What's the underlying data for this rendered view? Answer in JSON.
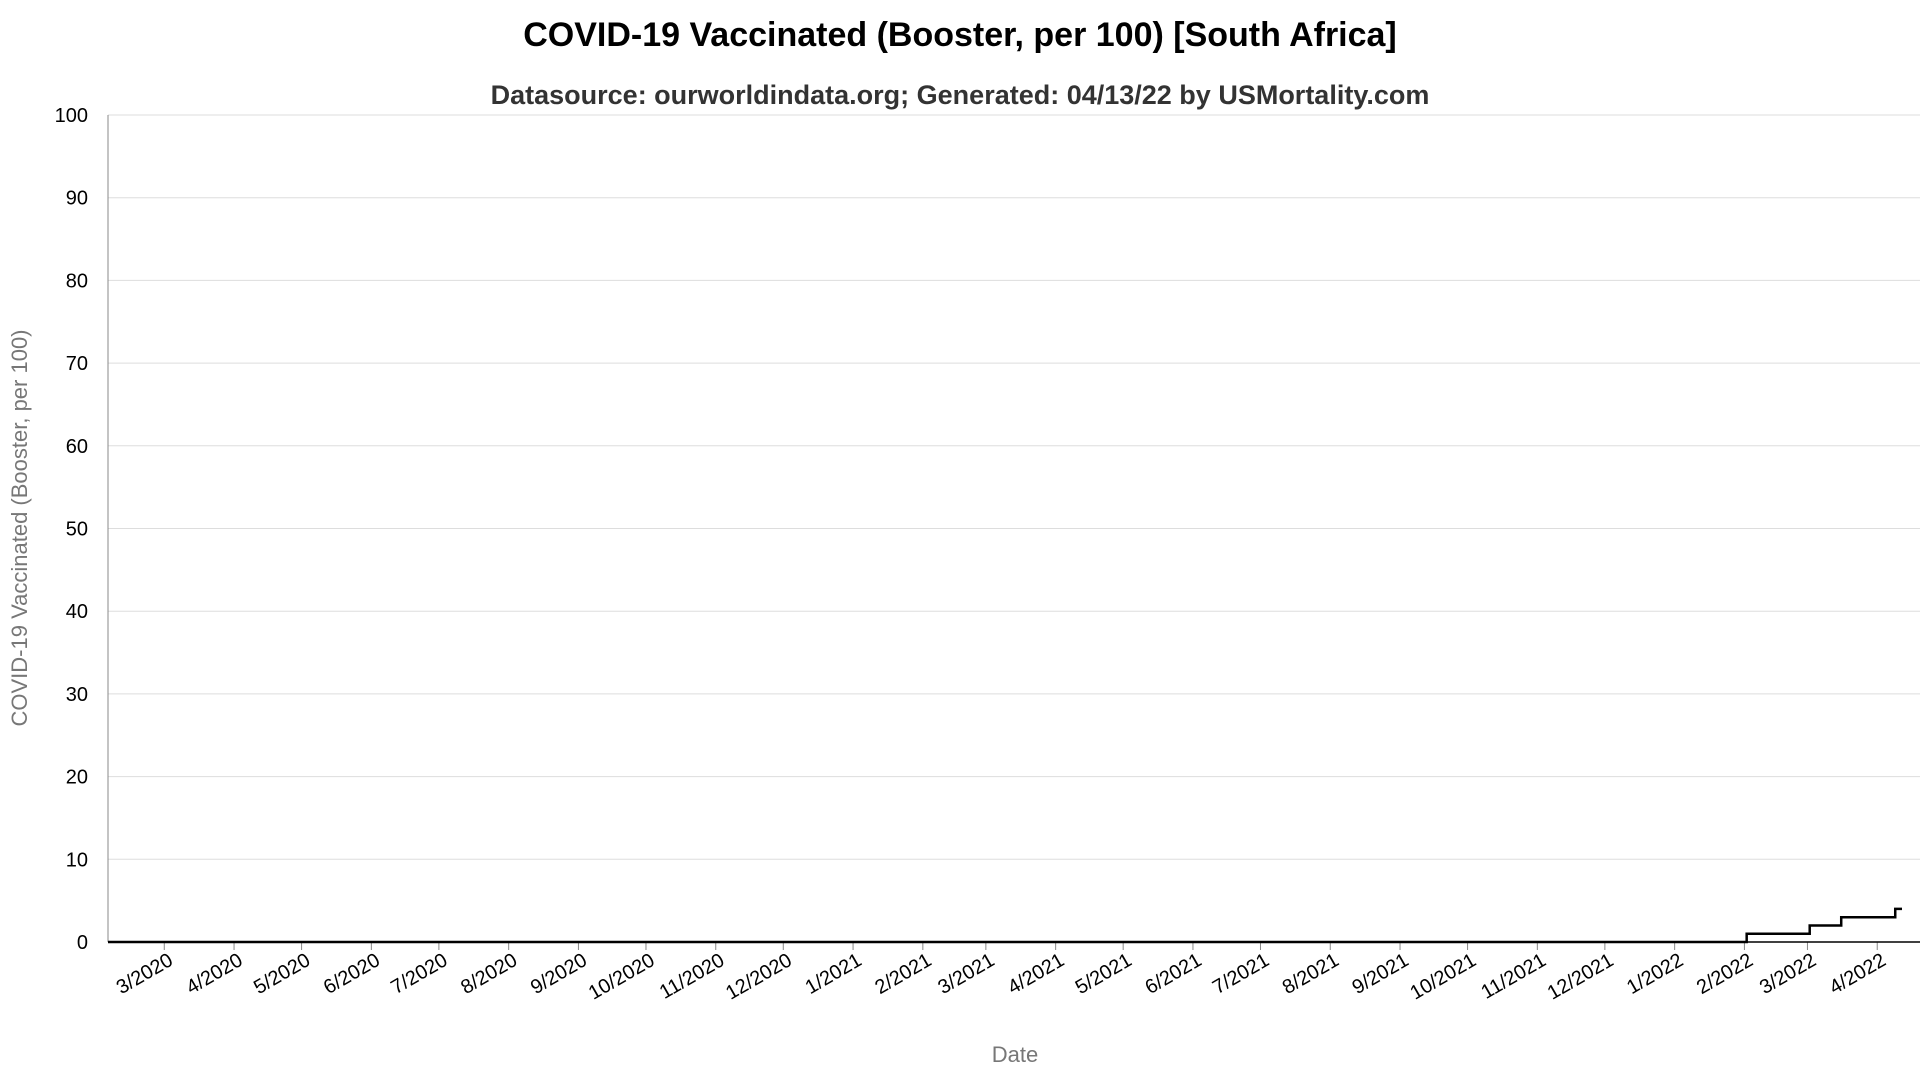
{
  "chart_data": {
    "type": "line",
    "title": "COVID-19 Vaccinated (Booster, per 100) [South Africa]",
    "subtitle": "Datasource: ourworldindata.org; Generated: 04/13/22 by USMortality.com",
    "xlabel": "Date",
    "ylabel": "COVID-19 Vaccinated (Booster, per 100)",
    "ylim": [
      0,
      100
    ],
    "yticks": [
      0,
      10,
      20,
      30,
      40,
      50,
      60,
      70,
      80,
      90,
      100
    ],
    "xlim": [
      "2020-02-05",
      "2022-04-20"
    ],
    "x_ticks": [
      {
        "date": "2020-03-01",
        "label": "3/2020"
      },
      {
        "date": "2020-04-01",
        "label": "4/2020"
      },
      {
        "date": "2020-05-01",
        "label": "5/2020"
      },
      {
        "date": "2020-06-01",
        "label": "6/2020"
      },
      {
        "date": "2020-07-01",
        "label": "7/2020"
      },
      {
        "date": "2020-08-01",
        "label": "8/2020"
      },
      {
        "date": "2020-09-01",
        "label": "9/2020"
      },
      {
        "date": "2020-10-01",
        "label": "10/2020"
      },
      {
        "date": "2020-11-01",
        "label": "11/2020"
      },
      {
        "date": "2020-12-01",
        "label": "12/2020"
      },
      {
        "date": "2021-01-01",
        "label": "1/2021"
      },
      {
        "date": "2021-02-01",
        "label": "2/2021"
      },
      {
        "date": "2021-03-01",
        "label": "3/2021"
      },
      {
        "date": "2021-04-01",
        "label": "4/2021"
      },
      {
        "date": "2021-05-01",
        "label": "5/2021"
      },
      {
        "date": "2021-06-01",
        "label": "6/2021"
      },
      {
        "date": "2021-07-01",
        "label": "7/2021"
      },
      {
        "date": "2021-08-01",
        "label": "8/2021"
      },
      {
        "date": "2021-09-01",
        "label": "9/2021"
      },
      {
        "date": "2021-10-01",
        "label": "10/2021"
      },
      {
        "date": "2021-11-01",
        "label": "11/2021"
      },
      {
        "date": "2021-12-01",
        "label": "12/2021"
      },
      {
        "date": "2022-01-01",
        "label": "1/2022"
      },
      {
        "date": "2022-02-01",
        "label": "2/2022"
      },
      {
        "date": "2022-03-01",
        "label": "3/2022"
      },
      {
        "date": "2022-04-01",
        "label": "4/2022"
      }
    ],
    "grid": true,
    "legend": "none",
    "line_color": "#000000",
    "series": [
      {
        "step": true,
        "points": [
          {
            "x": "2020-02-05",
            "y": 0
          },
          {
            "x": "2022-02-01",
            "y": 0
          },
          {
            "x": "2022-02-02",
            "y": 1
          },
          {
            "x": "2022-03-01",
            "y": 1
          },
          {
            "x": "2022-03-02",
            "y": 2
          },
          {
            "x": "2022-03-15",
            "y": 2
          },
          {
            "x": "2022-03-16",
            "y": 3
          },
          {
            "x": "2022-04-08",
            "y": 3
          },
          {
            "x": "2022-04-09",
            "y": 4
          },
          {
            "x": "2022-04-12",
            "y": 4
          }
        ]
      }
    ]
  }
}
